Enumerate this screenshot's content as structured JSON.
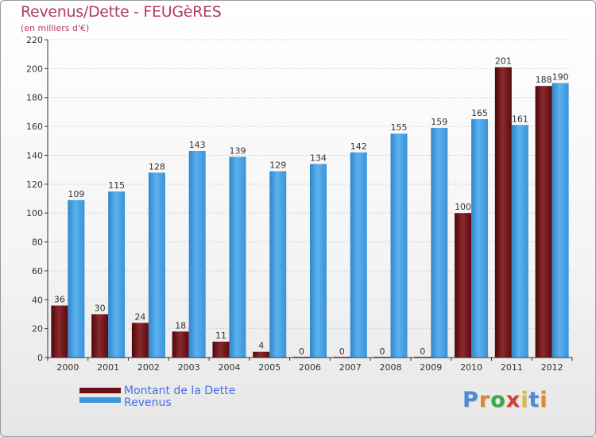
{
  "header": {
    "title": "Revenus/Dette - FEUGèRES",
    "subtitle": "(en milliers d'€)"
  },
  "legend": {
    "items": [
      {
        "label": "Montant de la Dette",
        "color": "#6b0f14"
      },
      {
        "label": "Revenus",
        "color": "#3e97dd"
      }
    ]
  },
  "logo": {
    "text": "Proxiti",
    "letter_colors": [
      "#4a8ad6",
      "#e0892a",
      "#3aa843",
      "#d83c3c",
      "#e7b92e",
      "#4a8ad6",
      "#e0892a"
    ]
  },
  "chart_data": {
    "type": "bar",
    "title": "Revenus/Dette - FEUGèRES",
    "subtitle": "(en milliers d'€)",
    "categories": [
      "2000",
      "2001",
      "2002",
      "2003",
      "2004",
      "2005",
      "2006",
      "2007",
      "2008",
      "2009",
      "2010",
      "2011",
      "2012"
    ],
    "series": [
      {
        "name": "Montant de la Dette",
        "color": "#6b0f14",
        "values": [
          36,
          30,
          24,
          18,
          11,
          4,
          0,
          0,
          0,
          0,
          100,
          201,
          188
        ]
      },
      {
        "name": "Revenus",
        "color": "#3e97dd",
        "values": [
          109,
          115,
          128,
          143,
          139,
          129,
          134,
          142,
          155,
          159,
          165,
          161,
          190
        ]
      }
    ],
    "ylim": [
      0,
      220
    ],
    "yticks": [
      0,
      20,
      40,
      60,
      80,
      100,
      120,
      140,
      160,
      180,
      200,
      220
    ],
    "grid": true,
    "legend_position": "bottom-left"
  }
}
